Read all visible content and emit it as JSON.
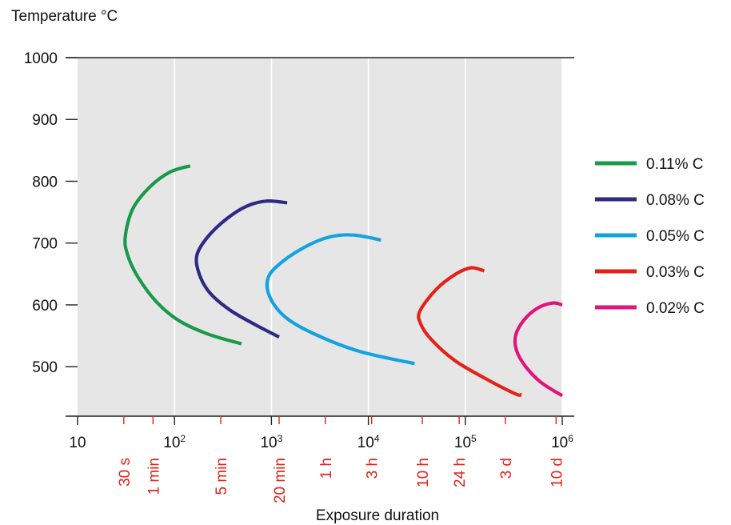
{
  "chart_data": {
    "type": "line",
    "ylabel": "Temperature °C",
    "xlabel": "Exposure duration",
    "x_scale": "log",
    "xlim": [
      10,
      1000000
    ],
    "ylim": [
      420,
      1000
    ],
    "grid": true,
    "legend_position": "right",
    "x_ticks": [
      {
        "value": 10,
        "base": "10",
        "exp": ""
      },
      {
        "value": 100,
        "base": "10",
        "exp": "2"
      },
      {
        "value": 1000,
        "base": "10",
        "exp": "3"
      },
      {
        "value": 10000,
        "base": "10",
        "exp": "4"
      },
      {
        "value": 100000,
        "base": "10",
        "exp": "5"
      },
      {
        "value": 1000000,
        "base": "10",
        "exp": "6"
      }
    ],
    "y_ticks": [
      1000,
      900,
      800,
      700,
      600,
      500
    ],
    "time_ticks": [
      {
        "label": "30 s",
        "value": 30
      },
      {
        "label": "1 min",
        "value": 60
      },
      {
        "label": "5 min",
        "value": 300
      },
      {
        "label": "20 min",
        "value": 1200
      },
      {
        "label": "1 h",
        "value": 3600
      },
      {
        "label": "3 h",
        "value": 10800
      },
      {
        "label": "10 h",
        "value": 36000
      },
      {
        "label": "24 h",
        "value": 86400
      },
      {
        "label": "3 d",
        "value": 259200
      },
      {
        "label": "10 d",
        "value": 864000
      }
    ],
    "series": [
      {
        "name": "0.11% C",
        "color": "#1a9a48",
        "points": [
          [
            145,
            825
          ],
          [
            90,
            815
          ],
          [
            55,
            790
          ],
          [
            37,
            755
          ],
          [
            31,
            710
          ],
          [
            33,
            680
          ],
          [
            42,
            645
          ],
          [
            65,
            605
          ],
          [
            110,
            575
          ],
          [
            220,
            553
          ],
          [
            490,
            537
          ]
        ]
      },
      {
        "name": "0.08% C",
        "color": "#2e2a85",
        "points": [
          [
            1450,
            765
          ],
          [
            900,
            768
          ],
          [
            560,
            760
          ],
          [
            350,
            740
          ],
          [
            220,
            710
          ],
          [
            170,
            680
          ],
          [
            180,
            650
          ],
          [
            230,
            620
          ],
          [
            370,
            592
          ],
          [
            680,
            568
          ],
          [
            1200,
            548
          ]
        ]
      },
      {
        "name": "0.05% C",
        "color": "#12a3e0",
        "points": [
          [
            13500,
            705
          ],
          [
            7000,
            713
          ],
          [
            4000,
            710
          ],
          [
            2300,
            695
          ],
          [
            1300,
            670
          ],
          [
            930,
            645
          ],
          [
            950,
            615
          ],
          [
            1350,
            582
          ],
          [
            2600,
            555
          ],
          [
            8000,
            525
          ],
          [
            30000,
            505
          ]
        ]
      },
      {
        "name": "0.03% C",
        "color": "#e2231a",
        "points": [
          [
            157000,
            655
          ],
          [
            115000,
            660
          ],
          [
            80000,
            650
          ],
          [
            50000,
            625
          ],
          [
            34000,
            590
          ],
          [
            34500,
            570
          ],
          [
            44000,
            545
          ],
          [
            78000,
            510
          ],
          [
            165000,
            480
          ],
          [
            330000,
            456
          ],
          [
            380000,
            455
          ]
        ]
      },
      {
        "name": "0.02% C",
        "color": "#e0147a",
        "points": [
          [
            1000000,
            600
          ],
          [
            800000,
            603
          ],
          [
            560000,
            595
          ],
          [
            400000,
            575
          ],
          [
            330000,
            550
          ],
          [
            340000,
            525
          ],
          [
            420000,
            500
          ],
          [
            600000,
            475
          ],
          [
            1000000,
            453
          ]
        ]
      }
    ]
  }
}
